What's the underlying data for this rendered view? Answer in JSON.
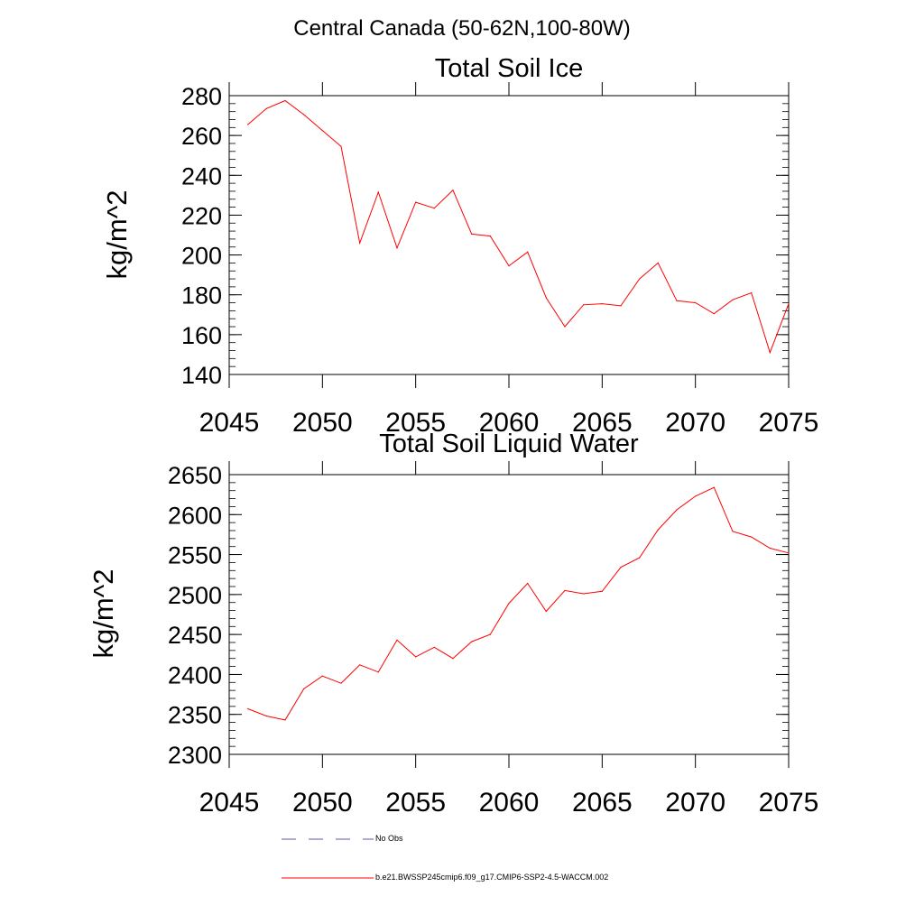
{
  "main_title": "Central Canada (50-62N,100-80W)",
  "chart_data": [
    {
      "type": "line",
      "title": "Total Soil Ice",
      "xlabel": "",
      "ylabel": "kg/m^2",
      "xlim": [
        2045,
        2075
      ],
      "ylim": [
        140,
        280
      ],
      "xticks": [
        2045,
        2050,
        2055,
        2060,
        2065,
        2070,
        2075
      ],
      "yticks": [
        140,
        160,
        180,
        200,
        220,
        240,
        260,
        280
      ],
      "x": [
        2046,
        2047,
        2048,
        2049,
        2050,
        2051,
        2052,
        2053,
        2054,
        2055,
        2056,
        2057,
        2058,
        2059,
        2060,
        2061,
        2062,
        2063,
        2064,
        2065,
        2066,
        2067,
        2068,
        2069,
        2070,
        2071,
        2072,
        2073,
        2074,
        2075
      ],
      "series": [
        {
          "name": "b.e21.BWSSP245cmip6.f09_g17.CMIP6-SSP2-4.5-WACCM.002",
          "color": "#ff0000",
          "values": [
            265.5,
            273.5,
            277.5,
            270.5,
            262.5,
            254.5,
            206,
            231.5,
            203.5,
            226.5,
            223.5,
            232.5,
            210.5,
            209.5,
            194.5,
            201.5,
            178.5,
            164,
            175,
            175.5,
            174.5,
            188,
            196,
            177,
            176,
            170.5,
            177.5,
            181,
            151,
            175.5
          ]
        }
      ],
      "grid": false
    },
    {
      "type": "line",
      "title": "Total Soil Liquid Water",
      "xlabel": "",
      "ylabel": "kg/m^2",
      "xlim": [
        2045,
        2075
      ],
      "ylim": [
        2300,
        2650
      ],
      "xticks": [
        2045,
        2050,
        2055,
        2060,
        2065,
        2070,
        2075
      ],
      "yticks": [
        2300,
        2350,
        2400,
        2450,
        2500,
        2550,
        2600,
        2650
      ],
      "x": [
        2046,
        2047,
        2048,
        2049,
        2050,
        2051,
        2052,
        2053,
        2054,
        2055,
        2056,
        2057,
        2058,
        2059,
        2060,
        2061,
        2062,
        2063,
        2064,
        2065,
        2066,
        2067,
        2068,
        2069,
        2070,
        2071,
        2072,
        2073,
        2074,
        2075
      ],
      "series": [
        {
          "name": "b.e21.BWSSP245cmip6.f09_g17.CMIP6-SSP2-4.5-WACCM.002",
          "color": "#ff0000",
          "values": [
            2357,
            2348,
            2343,
            2382,
            2398,
            2389,
            2412,
            2403,
            2443,
            2422,
            2434,
            2420,
            2441,
            2450,
            2489,
            2514,
            2479,
            2505,
            2501,
            2504,
            2534,
            2546,
            2581,
            2606,
            2623,
            2634,
            2579,
            2572,
            2558,
            2552
          ]
        }
      ],
      "grid": false
    }
  ],
  "legend": [
    {
      "label": "No Obs",
      "color": "#5a5aa0",
      "style": "dashed"
    },
    {
      "label": "b.e21.BWSSP245cmip6.f09_g17.CMIP6-SSP2-4.5-WACCM.002",
      "color": "#ff0000",
      "style": "solid"
    }
  ]
}
